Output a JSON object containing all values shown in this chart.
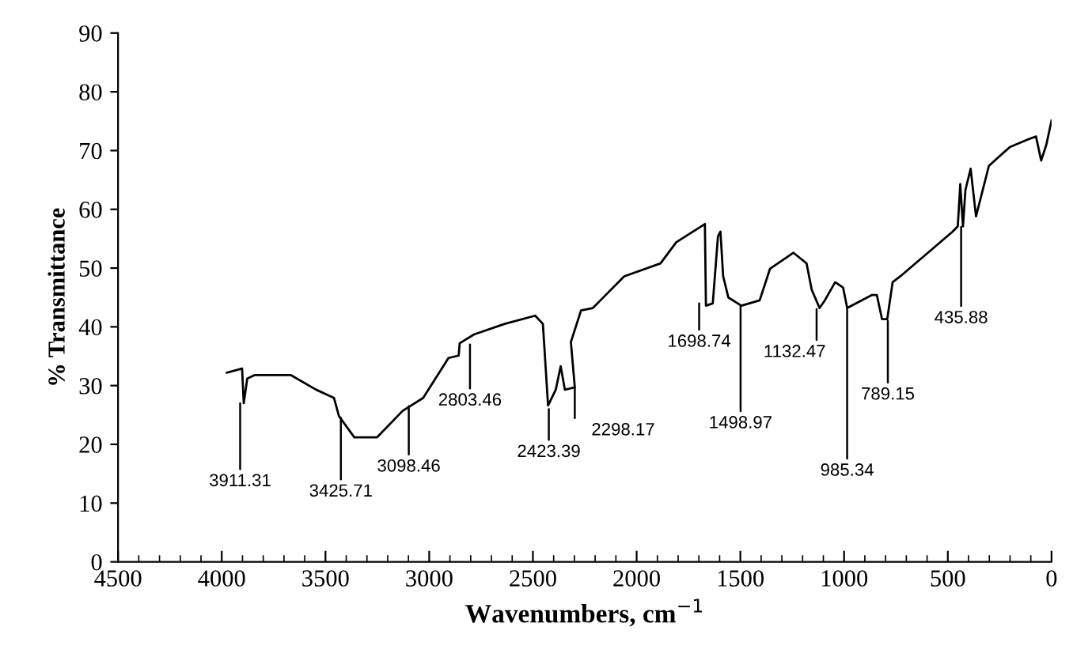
{
  "chart_data": {
    "type": "line",
    "xlabel": "Wavenumbers, cm$^{−1}$",
    "ylabel": "% Transmittance",
    "xlim": [
      4500,
      0
    ],
    "xticks": [
      4500,
      4000,
      3500,
      3000,
      2500,
      2000,
      1500,
      1000,
      500,
      0
    ],
    "ylim": [
      0,
      90
    ],
    "yticks": [
      0,
      10,
      20,
      30,
      40,
      50,
      60,
      70,
      80,
      90
    ],
    "grid": false,
    "marker": "none",
    "line_style": "solid",
    "series": [
      {
        "color": "#000000",
        "x": [
          3975,
          3902,
          3894,
          3877,
          3840,
          3668,
          3545,
          3459,
          3435,
          3361,
          3251,
          3128,
          3029,
          2907,
          2858,
          2853,
          2784,
          2636,
          2489,
          2452,
          2427,
          2390,
          2366,
          2346,
          2298,
          2317,
          2268,
          2211,
          2060,
          1885,
          1809,
          1671,
          1666,
          1633,
          1608,
          1596,
          1583,
          1558,
          1495,
          1407,
          1357,
          1244,
          1181,
          1156,
          1118,
          1093,
          1043,
          1005,
          985,
          867,
          842,
          817,
          792,
          766,
          729,
          477,
          452,
          440,
          427,
          415,
          390,
          364,
          302,
          201,
          113,
          75,
          50,
          25,
          0
        ],
        "values": [
          32.2,
          32.9,
          27.0,
          31.2,
          31.8,
          31.8,
          29.3,
          27.9,
          24.8,
          21.2,
          21.2,
          25.7,
          27.9,
          34.7,
          35.1,
          37.2,
          38.7,
          40.5,
          41.9,
          40.5,
          26.6,
          29.3,
          33.3,
          29.3,
          29.7,
          37.4,
          42.8,
          43.2,
          48.6,
          50.8,
          54.4,
          57.5,
          43.6,
          44.0,
          55.4,
          56.2,
          48.6,
          45.0,
          43.6,
          44.5,
          49.9,
          52.6,
          50.8,
          46.3,
          43.2,
          44.5,
          47.6,
          46.7,
          43.2,
          45.4,
          45.4,
          41.3,
          41.3,
          47.6,
          48.6,
          56.2,
          57.1,
          64.3,
          57.1,
          63.3,
          66.9,
          58.8,
          67.4,
          70.6,
          71.9,
          72.4,
          68.3,
          71.0,
          75.1
        ]
      }
    ],
    "annotations": [
      {
        "text": "3911.31",
        "x": 3911.31,
        "y": 27
      },
      {
        "text": "3425.71",
        "x": 3425.71,
        "y": 24.5
      },
      {
        "text": "3098.46",
        "x": 3098.46,
        "y": 26.5
      },
      {
        "text": "2803.46",
        "x": 2803.46,
        "y": 37
      },
      {
        "text": "2423.39",
        "x": 2423.39,
        "y": 26
      },
      {
        "text": "2298.17",
        "x": 2298.17,
        "y": 29.7
      },
      {
        "text": "1698.74",
        "x": 1698.74,
        "y": 44
      },
      {
        "text": "1498.97",
        "x": 1498.97,
        "y": 43.6
      },
      {
        "text": "1132.47",
        "x": 1132.47,
        "y": 43
      },
      {
        "text": "985.34",
        "x": 985.34,
        "y": 43
      },
      {
        "text": "789.15",
        "x": 789.15,
        "y": 41
      },
      {
        "text": "435.88",
        "x": 435.88,
        "y": 57
      }
    ]
  }
}
